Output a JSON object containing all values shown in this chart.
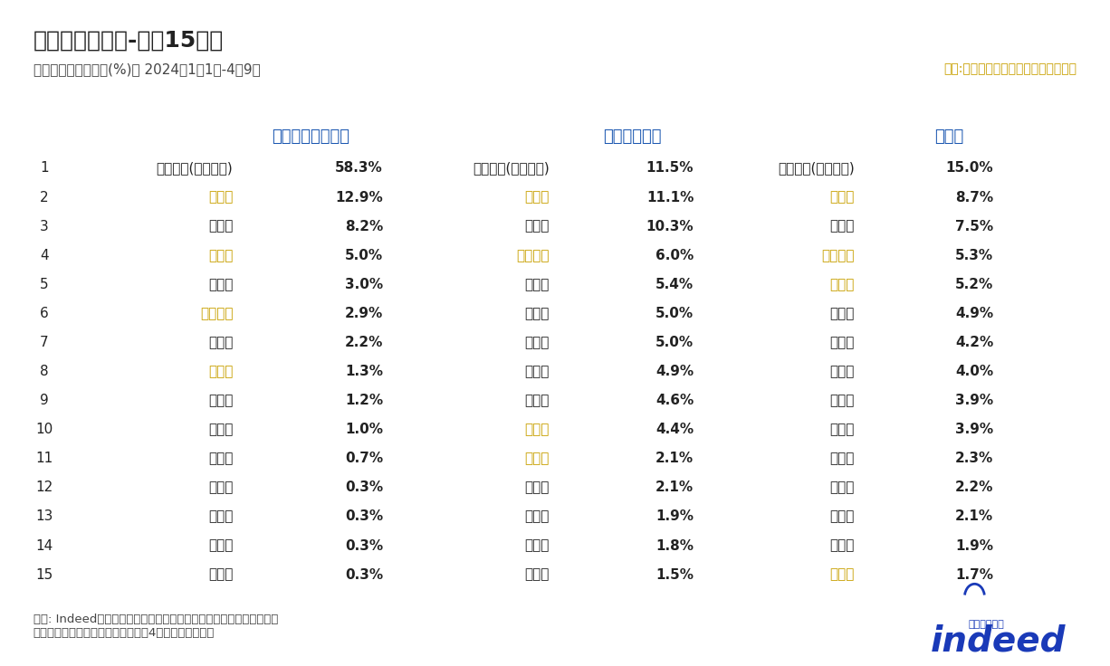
{
  "title": "検索先都道府県-上位15地域",
  "subtitle": "検索先都道府県割合(%)、 2024年1月1日-4月9日",
  "highlight_note": "黄色:一部導入地域が決まった都道府県",
  "footer": "出所: Indeed。それぞれ検索先割合が大きい順に都道府県をソート。\n黄色は一部の地域で導入が決まった4都道府県を示す。",
  "col_headers": [
    "ライドシェア検索",
    "タクシー検索",
    "全検索"
  ],
  "col_header_color": "#1a56b0",
  "highlight_color": "#c8a000",
  "normal_color": "#222222",
  "ranks": [
    1,
    2,
    3,
    4,
    5,
    6,
    7,
    8,
    9,
    10,
    11,
    12,
    13,
    14,
    15
  ],
  "rideshare_labels": [
    "指定なし(ブランク)",
    "東京都",
    "大阪府",
    "愛知県",
    "埼玉県",
    "神奈川県",
    "千葉県",
    "京都府",
    "北海道",
    "兵庫県",
    "福岡県",
    "静岡県",
    "広島県",
    "宮城県",
    "茨城県"
  ],
  "rideshare_values": [
    "58.3%",
    "12.9%",
    "8.2%",
    "5.0%",
    "3.0%",
    "2.9%",
    "2.2%",
    "1.3%",
    "1.2%",
    "1.0%",
    "0.7%",
    "0.3%",
    "0.3%",
    "0.3%",
    "0.3%"
  ],
  "rideshare_highlighted": [
    false,
    true,
    false,
    true,
    false,
    true,
    false,
    true,
    false,
    false,
    false,
    false,
    false,
    false,
    false
  ],
  "taxi_labels": [
    "指定なし(ブランク)",
    "東京都",
    "大阪府",
    "神奈川県",
    "福岡県",
    "埼玉県",
    "千葉県",
    "兵庫県",
    "北海道",
    "愛知県",
    "京都府",
    "静岡県",
    "茨城県",
    "宮城県",
    "沖縄県"
  ],
  "taxi_values": [
    "11.5%",
    "11.1%",
    "10.3%",
    "6.0%",
    "5.4%",
    "5.0%",
    "5.0%",
    "4.9%",
    "4.6%",
    "4.4%",
    "2.1%",
    "2.1%",
    "1.9%",
    "1.8%",
    "1.5%"
  ],
  "taxi_highlighted": [
    false,
    true,
    false,
    true,
    false,
    false,
    false,
    false,
    false,
    true,
    true,
    false,
    false,
    false,
    false
  ],
  "all_labels": [
    "指定なし(ブランク)",
    "東京都",
    "大阪府",
    "神奈川県",
    "愛知県",
    "埼玉県",
    "福岡県",
    "北海道",
    "千葉県",
    "兵庫県",
    "静岡県",
    "茨城県",
    "宮城県",
    "広島県",
    "京都府"
  ],
  "all_values": [
    "15.0%",
    "8.7%",
    "7.5%",
    "5.3%",
    "5.2%",
    "4.9%",
    "4.2%",
    "4.0%",
    "3.9%",
    "3.9%",
    "2.3%",
    "2.2%",
    "2.1%",
    "1.9%",
    "1.7%"
  ],
  "all_highlighted": [
    false,
    true,
    false,
    true,
    true,
    false,
    false,
    false,
    false,
    false,
    false,
    false,
    false,
    false,
    true
  ],
  "bg_color": "#ffffff",
  "title_color": "#222222",
  "subtitle_color": "#444444",
  "rank_color": "#222222",
  "value_bold": true,
  "indeed_color": "#1a3ab8",
  "indeed_small_color": "#1a3ab8"
}
